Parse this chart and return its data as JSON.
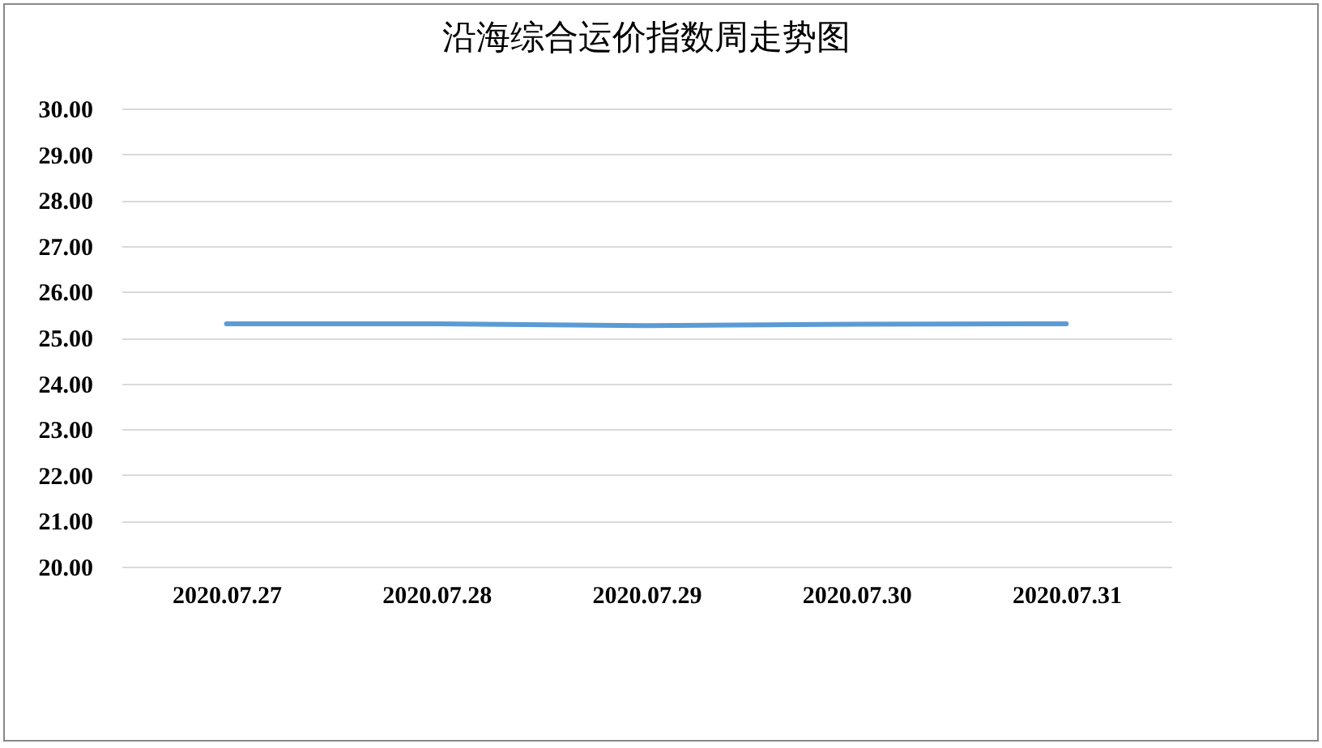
{
  "chart_data": {
    "type": "line",
    "title": "沿海综合运价指数周走势图",
    "categories": [
      "2020.07.27",
      "2020.07.28",
      "2020.07.29",
      "2020.07.30",
      "2020.07.31"
    ],
    "series": [
      {
        "color": "#5b9bd5",
        "values": [
          25.3,
          25.3,
          25.26,
          25.29,
          25.3
        ]
      }
    ],
    "ylim": [
      20,
      30
    ],
    "yticks": [
      {
        "value": 20,
        "label": "20.00"
      },
      {
        "value": 21,
        "label": "21.00"
      },
      {
        "value": 22,
        "label": "22.00"
      },
      {
        "value": 23,
        "label": "23.00"
      },
      {
        "value": 24,
        "label": "24.00"
      },
      {
        "value": 25,
        "label": "25.00"
      },
      {
        "value": 26,
        "label": "26.00"
      },
      {
        "value": 27,
        "label": "27.00"
      },
      {
        "value": 28,
        "label": "28.00"
      },
      {
        "value": 29,
        "label": "29.00"
      },
      {
        "value": 30,
        "label": "30.00"
      }
    ],
    "grid": "y",
    "legend": false,
    "marker": "none",
    "line_style": "solid"
  }
}
